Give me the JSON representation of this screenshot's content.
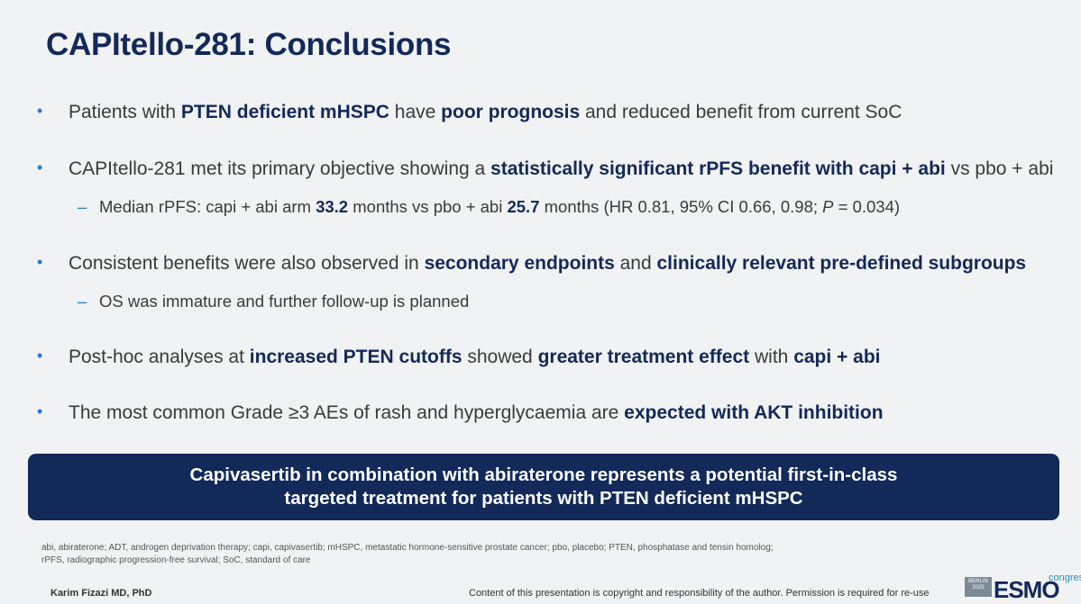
{
  "title": "CAPItello-281: Conclusions",
  "bullet_marker": "•",
  "sub_marker": "–",
  "bullets": [
    {
      "parts": [
        "Patients with ",
        "PTEN deficient mHSPC",
        " have ",
        "poor prognosis",
        " and reduced benefit from current SoC"
      ]
    },
    {
      "parts": [
        "CAPItello-281 met its primary objective showing a ",
        "statistically significant rPFS benefit with capi + abi",
        " vs pbo + abi"
      ]
    },
    {
      "parts": [
        "Consistent benefits were also observed in ",
        "secondary endpoints",
        " and ",
        "clinically relevant pre-defined subgroups"
      ]
    },
    {
      "parts": [
        "Post-hoc analyses at ",
        "increased PTEN cutoffs",
        " showed ",
        "greater treatment effect",
        " with ",
        "capi + abi"
      ]
    },
    {
      "parts": [
        "The most common Grade ≥3 AEs of rash and hyperglycaemia are ",
        "expected with AKT inhibition"
      ]
    }
  ],
  "subs": [
    {
      "parts": [
        "Median rPFS: capi + abi arm ",
        "33.2",
        " months vs pbo + abi ",
        "25.7",
        " months (HR 0.81, 95% CI 0.66, 0.98; ",
        "P",
        " = 0.034)"
      ]
    },
    {
      "parts": [
        "OS was immature and further follow-up is planned"
      ]
    }
  ],
  "banner": {
    "line1": "Capivasertib in combination with abiraterone represents a potential first-in-class",
    "line2": "targeted treatment for patients with PTEN deficient mHSPC"
  },
  "footnote": {
    "line1": "abi, abiraterone; ADT, androgen deprivation therapy; capi, capivasertib; mHSPC, metastatic hormone-sensitive prostate cancer; pbo, placebo; PTEN, phosphatase and tensin homolog;",
    "line2": "rPFS, radiographic progression-free survival; SoC, standard of care"
  },
  "author": "Karim Fizazi MD, PhD",
  "copyright": "Content of this presentation is copyright and responsibility of the author. Permission is required for re-use",
  "logo": {
    "box_line1": "BERLIN",
    "box_line2": "2025",
    "name": "ESMO",
    "suffix": "congress"
  }
}
